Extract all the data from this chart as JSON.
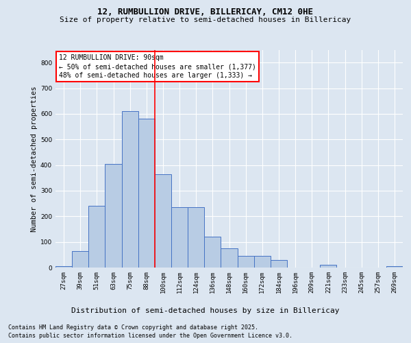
{
  "title_line1": "12, RUMBULLION DRIVE, BILLERICAY, CM12 0HE",
  "title_line2": "Size of property relative to semi-detached houses in Billericay",
  "xlabel": "Distribution of semi-detached houses by size in Billericay",
  "ylabel": "Number of semi-detached properties",
  "categories": [
    "27sqm",
    "39sqm",
    "51sqm",
    "63sqm",
    "75sqm",
    "88sqm",
    "100sqm",
    "112sqm",
    "124sqm",
    "136sqm",
    "148sqm",
    "160sqm",
    "172sqm",
    "184sqm",
    "196sqm",
    "209sqm",
    "221sqm",
    "233sqm",
    "245sqm",
    "257sqm",
    "269sqm"
  ],
  "values": [
    5,
    65,
    240,
    405,
    610,
    580,
    365,
    235,
    235,
    120,
    75,
    45,
    45,
    30,
    0,
    0,
    10,
    0,
    0,
    0,
    5
  ],
  "bar_color": "#b8cce4",
  "bar_edge_color": "#4472c4",
  "vline_color": "red",
  "vline_pos": 5.5,
  "annotation_title": "12 RUMBULLION DRIVE: 90sqm",
  "annotation_line1": "← 50% of semi-detached houses are smaller (1,377)",
  "annotation_line2": "48% of semi-detached houses are larger (1,333) →",
  "annotation_box_color": "white",
  "annotation_box_edge_color": "red",
  "footer_line1": "Contains HM Land Registry data © Crown copyright and database right 2025.",
  "footer_line2": "Contains public sector information licensed under the Open Government Licence v3.0.",
  "ylim": [
    0,
    850
  ],
  "background_color": "#dce6f1",
  "plot_bg_color": "#dce6f1",
  "title_fontsize": 9,
  "subtitle_fontsize": 8,
  "ylabel_fontsize": 7.5,
  "xlabel_fontsize": 8,
  "tick_fontsize": 6.5,
  "annotation_fontsize": 7,
  "footer_fontsize": 6
}
